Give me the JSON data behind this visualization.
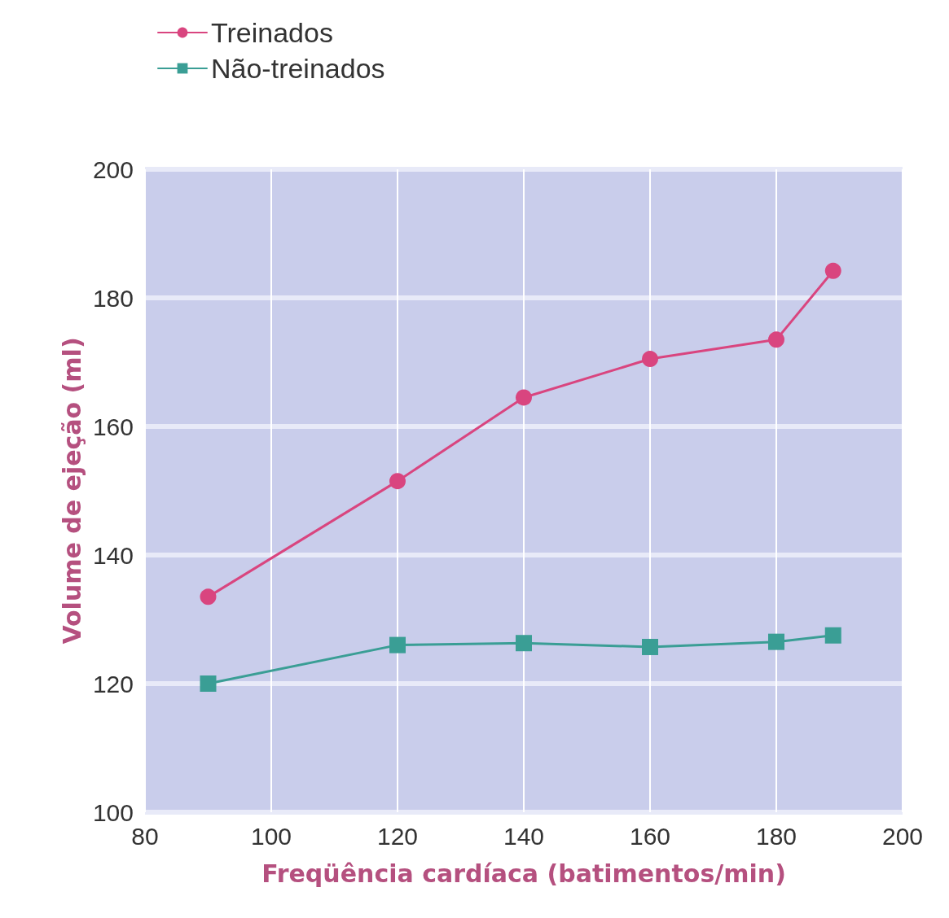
{
  "chart_data": {
    "type": "line",
    "xlabel": "Freqüência cardíaca (batimentos/min)",
    "ylabel": "Volume de ejeção (ml)",
    "series": [
      {
        "name": "Treinados",
        "color": "#d9457f",
        "marker": "circle",
        "x": [
          90,
          120,
          140,
          160,
          180,
          189
        ],
        "values": [
          133.5,
          151.5,
          164.5,
          170.5,
          173.5,
          184.2
        ]
      },
      {
        "name": "Não-treinados",
        "color": "#3a9e95",
        "marker": "square",
        "x": [
          90,
          120,
          140,
          160,
          180,
          189
        ],
        "values": [
          120,
          126,
          126.3,
          125.7,
          126.5,
          127.5
        ]
      }
    ],
    "xlim": [
      80,
      200
    ],
    "xticks": [
      80,
      100,
      120,
      140,
      160,
      180,
      200
    ],
    "ylim": [
      100,
      200
    ],
    "yticks": [
      100,
      120,
      140,
      160,
      180,
      200
    ],
    "grid": true,
    "legend": "top left",
    "line_style": "solid"
  }
}
